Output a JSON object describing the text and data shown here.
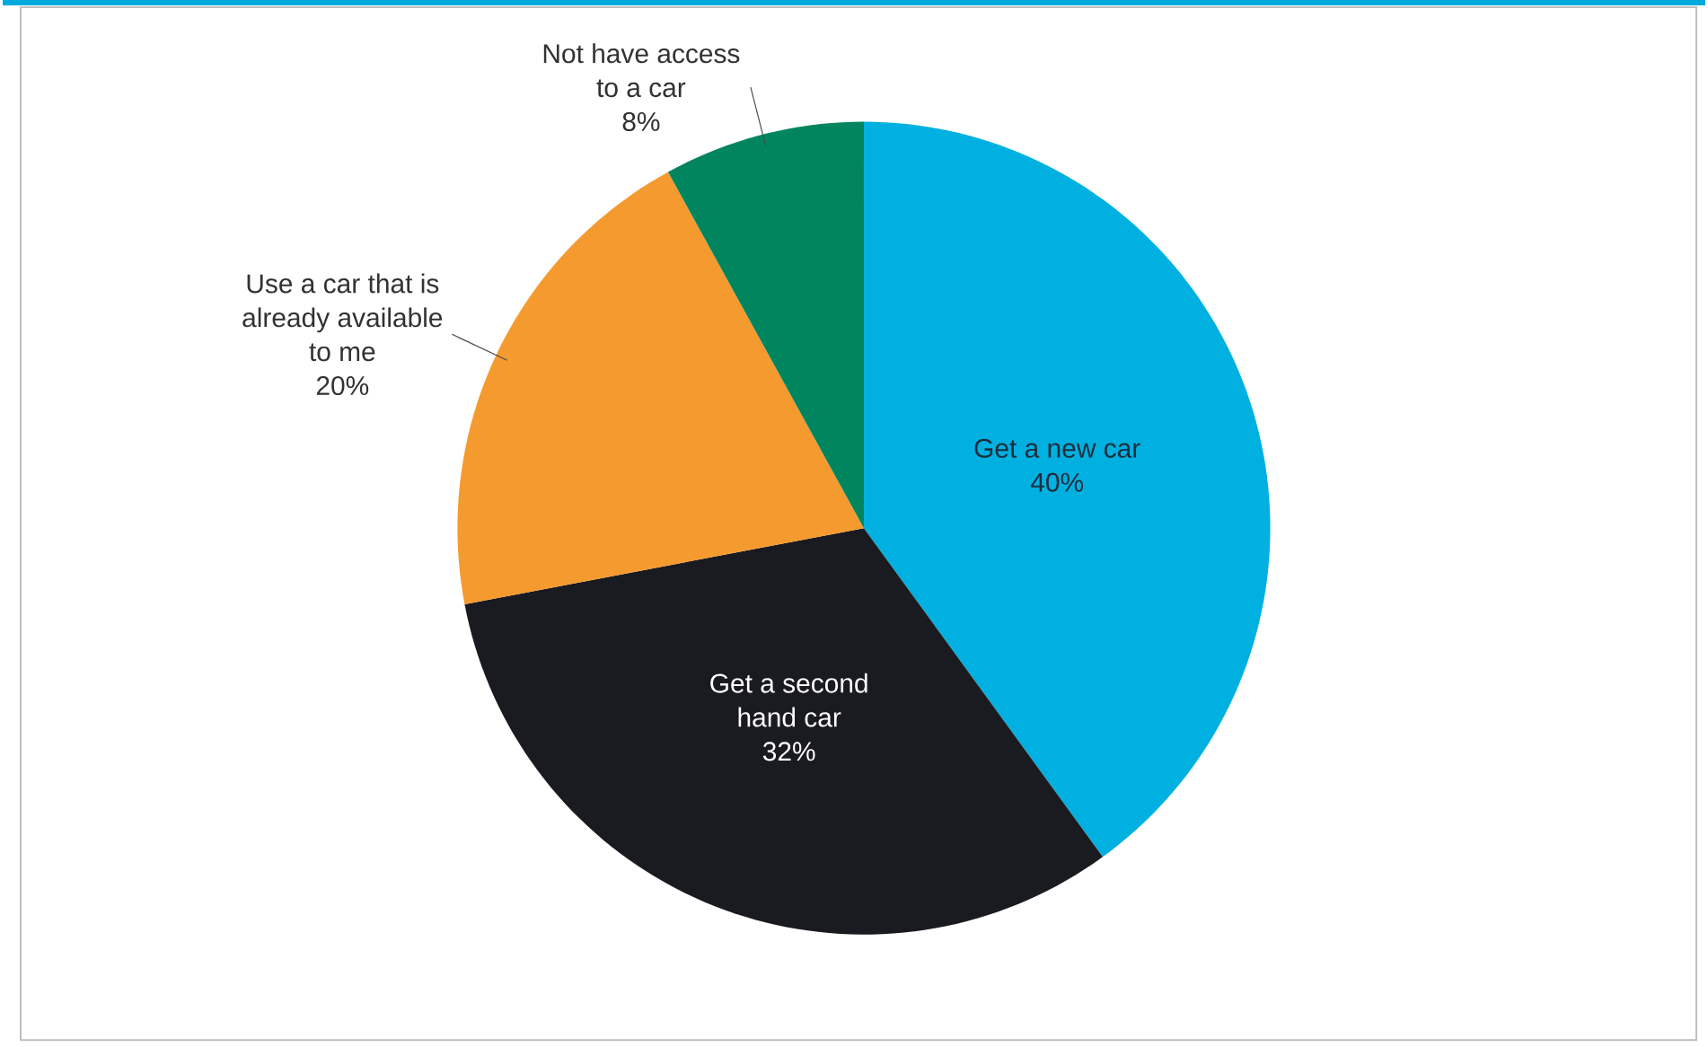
{
  "chart_data": {
    "type": "pie",
    "categories": [
      "Get a new car",
      "Get a second hand car",
      "Use a car that is already available to me",
      "Not have access to a car"
    ],
    "values": [
      40,
      32,
      20,
      8
    ],
    "value_labels": [
      "40%",
      "32%",
      "20%",
      "8%"
    ],
    "colors": [
      "#00b0e0",
      "#1a1b20",
      "#f59a2f",
      "#00855e"
    ]
  }
}
